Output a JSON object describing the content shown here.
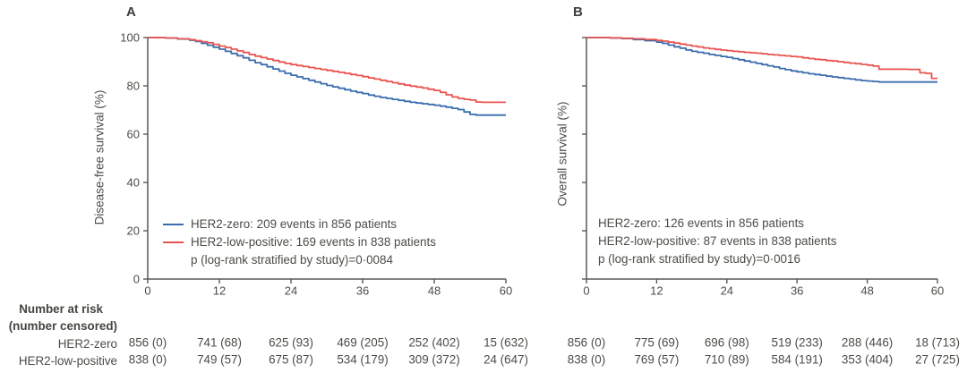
{
  "figure": {
    "panels": [
      {
        "label": "A",
        "y_axis_label": "Disease-free survival (%)",
        "y_ticks": [
          "100",
          "80",
          "60",
          "40",
          "20",
          "0"
        ],
        "x_ticks": [
          "0",
          "12",
          "24",
          "36",
          "48",
          "60"
        ],
        "legend": {
          "items": [
            {
              "label": "HER2-zero: 209 events in 856 patients",
              "color": "#3b6cad"
            },
            {
              "label": "HER2-low-positive: 169 events in 838 patients",
              "color": "#ea5450"
            }
          ],
          "p_value": "p (log-rank stratified by study)=0·0084"
        }
      },
      {
        "label": "B",
        "y_axis_label": "Overall survival (%)",
        "y_ticks": [],
        "x_ticks": [
          "0",
          "12",
          "24",
          "36",
          "48",
          "60"
        ],
        "legend": {
          "items": [
            {
              "label": "HER2-zero: 126 events in 856 patients",
              "color": "#3b6cad"
            },
            {
              "label": "HER2-low-positive: 87 events in 838 patients",
              "color": "#ea5450"
            }
          ],
          "p_value": "p (log-rank stratified by study)=0·0016"
        }
      }
    ],
    "risk_table": {
      "header_line1": "Number at risk",
      "header_line2": "(number censored)",
      "row_labels": [
        "HER2-zero",
        "HER2-low-positive"
      ],
      "panels": [
        {
          "rows": [
            [
              "856 (0)",
              "741 (68)",
              "625 (93)",
              "469 (205)",
              "252 (402)",
              "15 (632)"
            ],
            [
              "838 (0)",
              "749 (57)",
              "675 (87)",
              "534 (179)",
              "309 (372)",
              "24 (647)"
            ]
          ]
        },
        {
          "rows": [
            [
              "856 (0)",
              "775 (69)",
              "696 (98)",
              "519 (233)",
              "288 (446)",
              "18 (713)"
            ],
            [
              "838 (0)",
              "769 (57)",
              "710 (89)",
              "584 (191)",
              "353 (404)",
              "27 (725)"
            ]
          ]
        }
      ]
    },
    "colors": {
      "her2_zero": "#3b6cad",
      "her2_low_positive": "#ea5450",
      "axis": "#58595b",
      "text": "#4c4c47"
    }
  },
  "chart_data": [
    {
      "type": "line",
      "subtype": "kaplan-meier-step",
      "panel": "A",
      "title": "A",
      "xlabel": "",
      "ylabel": "Disease-free survival (%)",
      "xlim": [
        0,
        60
      ],
      "ylim": [
        0,
        100
      ],
      "x_ticks": [
        0,
        12,
        24,
        36,
        48,
        60
      ],
      "y_ticks": [
        100,
        80,
        60,
        40,
        20,
        0
      ],
      "grid": false,
      "legend_position": "inside-lower-left",
      "annotations": [
        "HER2-zero: 209 events in 856 patients",
        "HER2-low-positive: 169 events in 838 patients",
        "p (log-rank stratified by study)=0·0084"
      ],
      "series": [
        {
          "name": "HER2-zero",
          "color": "#3b6cad",
          "points": [
            [
              0,
              100
            ],
            [
              3,
              99.8
            ],
            [
              5,
              99.4
            ],
            [
              7,
              98.9
            ],
            [
              8,
              98.4
            ],
            [
              9,
              97.6
            ],
            [
              10,
              96.8
            ],
            [
              11,
              96
            ],
            [
              12,
              95.2
            ],
            [
              13,
              94.3
            ],
            [
              14,
              93.4
            ],
            [
              15,
              92.5
            ],
            [
              16,
              91.6
            ],
            [
              17,
              90.6
            ],
            [
              18,
              89.6
            ],
            [
              19,
              88.8
            ],
            [
              20,
              87.9
            ],
            [
              21,
              87
            ],
            [
              22,
              86.1
            ],
            [
              23,
              85.2
            ],
            [
              24,
              84.4
            ],
            [
              25,
              83.7
            ],
            [
              26,
              83
            ],
            [
              27,
              82.3
            ],
            [
              28,
              81.6
            ],
            [
              29,
              80.9
            ],
            [
              30,
              80.2
            ],
            [
              31,
              79.6
            ],
            [
              32,
              79
            ],
            [
              33,
              78.4
            ],
            [
              34,
              77.8
            ],
            [
              35,
              77.3
            ],
            [
              36,
              76.8
            ],
            [
              37,
              76.2
            ],
            [
              38,
              75.7
            ],
            [
              39,
              75.2
            ],
            [
              40,
              74.8
            ],
            [
              41,
              74.4
            ],
            [
              42,
              74
            ],
            [
              43,
              73.6
            ],
            [
              44,
              73.2
            ],
            [
              45,
              72.9
            ],
            [
              46,
              72.6
            ],
            [
              47,
              72.3
            ],
            [
              48,
              72
            ],
            [
              49,
              71.6
            ],
            [
              50,
              71.2
            ],
            [
              51,
              70.7
            ],
            [
              52,
              70.2
            ],
            [
              53,
              69.2
            ],
            [
              54,
              68.2
            ],
            [
              55,
              67.9
            ],
            [
              60,
              67.9
            ]
          ]
        },
        {
          "name": "HER2-low-positive",
          "color": "#ea5450",
          "points": [
            [
              0,
              100
            ],
            [
              3,
              99.8
            ],
            [
              5,
              99.5
            ],
            [
              7,
              99.1
            ],
            [
              8,
              98.7
            ],
            [
              9,
              98.3
            ],
            [
              10,
              97.8
            ],
            [
              11,
              97.2
            ],
            [
              12,
              96.5
            ],
            [
              13,
              95.9
            ],
            [
              14,
              95.2
            ],
            [
              15,
              94.5
            ],
            [
              16,
              93.8
            ],
            [
              17,
              93
            ],
            [
              18,
              92.3
            ],
            [
              19,
              91.7
            ],
            [
              20,
              91.1
            ],
            [
              21,
              90.5
            ],
            [
              22,
              89.9
            ],
            [
              23,
              89.3
            ],
            [
              24,
              88.8
            ],
            [
              25,
              88.4
            ],
            [
              26,
              88
            ],
            [
              27,
              87.6
            ],
            [
              28,
              87.2
            ],
            [
              29,
              86.8
            ],
            [
              30,
              86.4
            ],
            [
              31,
              86
            ],
            [
              32,
              85.6
            ],
            [
              33,
              85.2
            ],
            [
              34,
              84.7
            ],
            [
              35,
              84.3
            ],
            [
              36,
              83.8
            ],
            [
              37,
              83.3
            ],
            [
              38,
              82.8
            ],
            [
              39,
              82.3
            ],
            [
              40,
              81.8
            ],
            [
              41,
              81.3
            ],
            [
              42,
              80.8
            ],
            [
              43,
              80.3
            ],
            [
              44,
              79.9
            ],
            [
              45,
              79.5
            ],
            [
              46,
              79.1
            ],
            [
              47,
              78.6
            ],
            [
              48,
              78.1
            ],
            [
              49,
              77.3
            ],
            [
              50,
              76.3
            ],
            [
              51,
              75.4
            ],
            [
              52,
              74.8
            ],
            [
              53,
              74.4
            ],
            [
              54,
              74.1
            ],
            [
              55,
              73.3
            ],
            [
              56,
              73.2
            ],
            [
              60,
              73.2
            ]
          ]
        }
      ],
      "number_at_risk": {
        "times": [
          0,
          12,
          24,
          36,
          48,
          60
        ],
        "HER2-zero": [
          "856 (0)",
          "741 (68)",
          "625 (93)",
          "469 (205)",
          "252 (402)",
          "15 (632)"
        ],
        "HER2-low-positive": [
          "838 (0)",
          "749 (57)",
          "675 (87)",
          "534 (179)",
          "309 (372)",
          "24 (647)"
        ]
      }
    },
    {
      "type": "line",
      "subtype": "kaplan-meier-step",
      "panel": "B",
      "title": "B",
      "xlabel": "",
      "ylabel": "Overall survival (%)",
      "xlim": [
        0,
        60
      ],
      "ylim": [
        0,
        100
      ],
      "x_ticks": [
        0,
        12,
        24,
        36,
        48,
        60
      ],
      "y_ticks": [
        100,
        80,
        60,
        40,
        20,
        0
      ],
      "y_tick_labels_shown": false,
      "grid": false,
      "legend_position": "inside-lower-left-text-only",
      "annotations": [
        "HER2-zero: 126 events in 856 patients",
        "HER2-low-positive: 87 events in 838 patients",
        "p (log-rank stratified by study)=0·0016"
      ],
      "series": [
        {
          "name": "HER2-zero",
          "color": "#3b6cad",
          "points": [
            [
              0,
              100
            ],
            [
              4,
              99.8
            ],
            [
              6,
              99.6
            ],
            [
              8,
              99.2
            ],
            [
              10,
              98.7
            ],
            [
              12,
              98.1
            ],
            [
              13,
              97.6
            ],
            [
              14,
              96.9
            ],
            [
              15,
              96.2
            ],
            [
              16,
              95.6
            ],
            [
              17,
              94.9
            ],
            [
              18,
              94.3
            ],
            [
              19,
              93.9
            ],
            [
              20,
              93.5
            ],
            [
              21,
              93
            ],
            [
              22,
              92.6
            ],
            [
              23,
              92.2
            ],
            [
              24,
              91.8
            ],
            [
              25,
              91.3
            ],
            [
              26,
              90.8
            ],
            [
              27,
              90.3
            ],
            [
              28,
              89.8
            ],
            [
              29,
              89.3
            ],
            [
              30,
              88.8
            ],
            [
              31,
              88.3
            ],
            [
              32,
              87.8
            ],
            [
              33,
              87.2
            ],
            [
              34,
              86.7
            ],
            [
              35,
              86.2
            ],
            [
              36,
              85.8
            ],
            [
              37,
              85.4
            ],
            [
              38,
              85
            ],
            [
              39,
              84.7
            ],
            [
              40,
              84.4
            ],
            [
              41,
              84
            ],
            [
              42,
              83.7
            ],
            [
              43,
              83.4
            ],
            [
              44,
              83.1
            ],
            [
              45,
              82.8
            ],
            [
              46,
              82.5
            ],
            [
              47,
              82.2
            ],
            [
              48,
              82
            ],
            [
              49,
              81.8
            ],
            [
              50,
              81.6
            ],
            [
              60,
              81.6
            ]
          ]
        },
        {
          "name": "HER2-low-positive",
          "color": "#ea5450",
          "points": [
            [
              0,
              100
            ],
            [
              4,
              99.9
            ],
            [
              6,
              99.7
            ],
            [
              8,
              99.5
            ],
            [
              10,
              99.2
            ],
            [
              12,
              98.8
            ],
            [
              13,
              98.5
            ],
            [
              14,
              98.1
            ],
            [
              15,
              97.7
            ],
            [
              16,
              97.3
            ],
            [
              17,
              96.9
            ],
            [
              18,
              96.5
            ],
            [
              19,
              96.1
            ],
            [
              20,
              95.7
            ],
            [
              21,
              95.4
            ],
            [
              22,
              95.1
            ],
            [
              23,
              94.8
            ],
            [
              24,
              94.6
            ],
            [
              25,
              94.3
            ],
            [
              26,
              94.1
            ],
            [
              27,
              93.9
            ],
            [
              28,
              93.7
            ],
            [
              29,
              93.5
            ],
            [
              30,
              93.3
            ],
            [
              31,
              93
            ],
            [
              32,
              92.8
            ],
            [
              33,
              92.6
            ],
            [
              34,
              92.4
            ],
            [
              35,
              92.2
            ],
            [
              36,
              92
            ],
            [
              37,
              91.6
            ],
            [
              38,
              91.3
            ],
            [
              39,
              91
            ],
            [
              40,
              90.8
            ],
            [
              41,
              90.5
            ],
            [
              42,
              90.3
            ],
            [
              43,
              90
            ],
            [
              44,
              89.7
            ],
            [
              45,
              89.4
            ],
            [
              46,
              89.2
            ],
            [
              47,
              88.9
            ],
            [
              48,
              88.6
            ],
            [
              49,
              88.2
            ],
            [
              50,
              86.9
            ],
            [
              55,
              86.8
            ],
            [
              57,
              85.4
            ],
            [
              58,
              85.2
            ],
            [
              59,
              83.1
            ],
            [
              60,
              83.1
            ]
          ]
        }
      ],
      "number_at_risk": {
        "times": [
          0,
          12,
          24,
          36,
          48,
          60
        ],
        "HER2-zero": [
          "856 (0)",
          "775 (69)",
          "696 (98)",
          "519 (233)",
          "288 (446)",
          "18 (713)"
        ],
        "HER2-low-positive": [
          "838 (0)",
          "769 (57)",
          "710 (89)",
          "584 (191)",
          "353 (404)",
          "27 (725)"
        ]
      }
    }
  ]
}
